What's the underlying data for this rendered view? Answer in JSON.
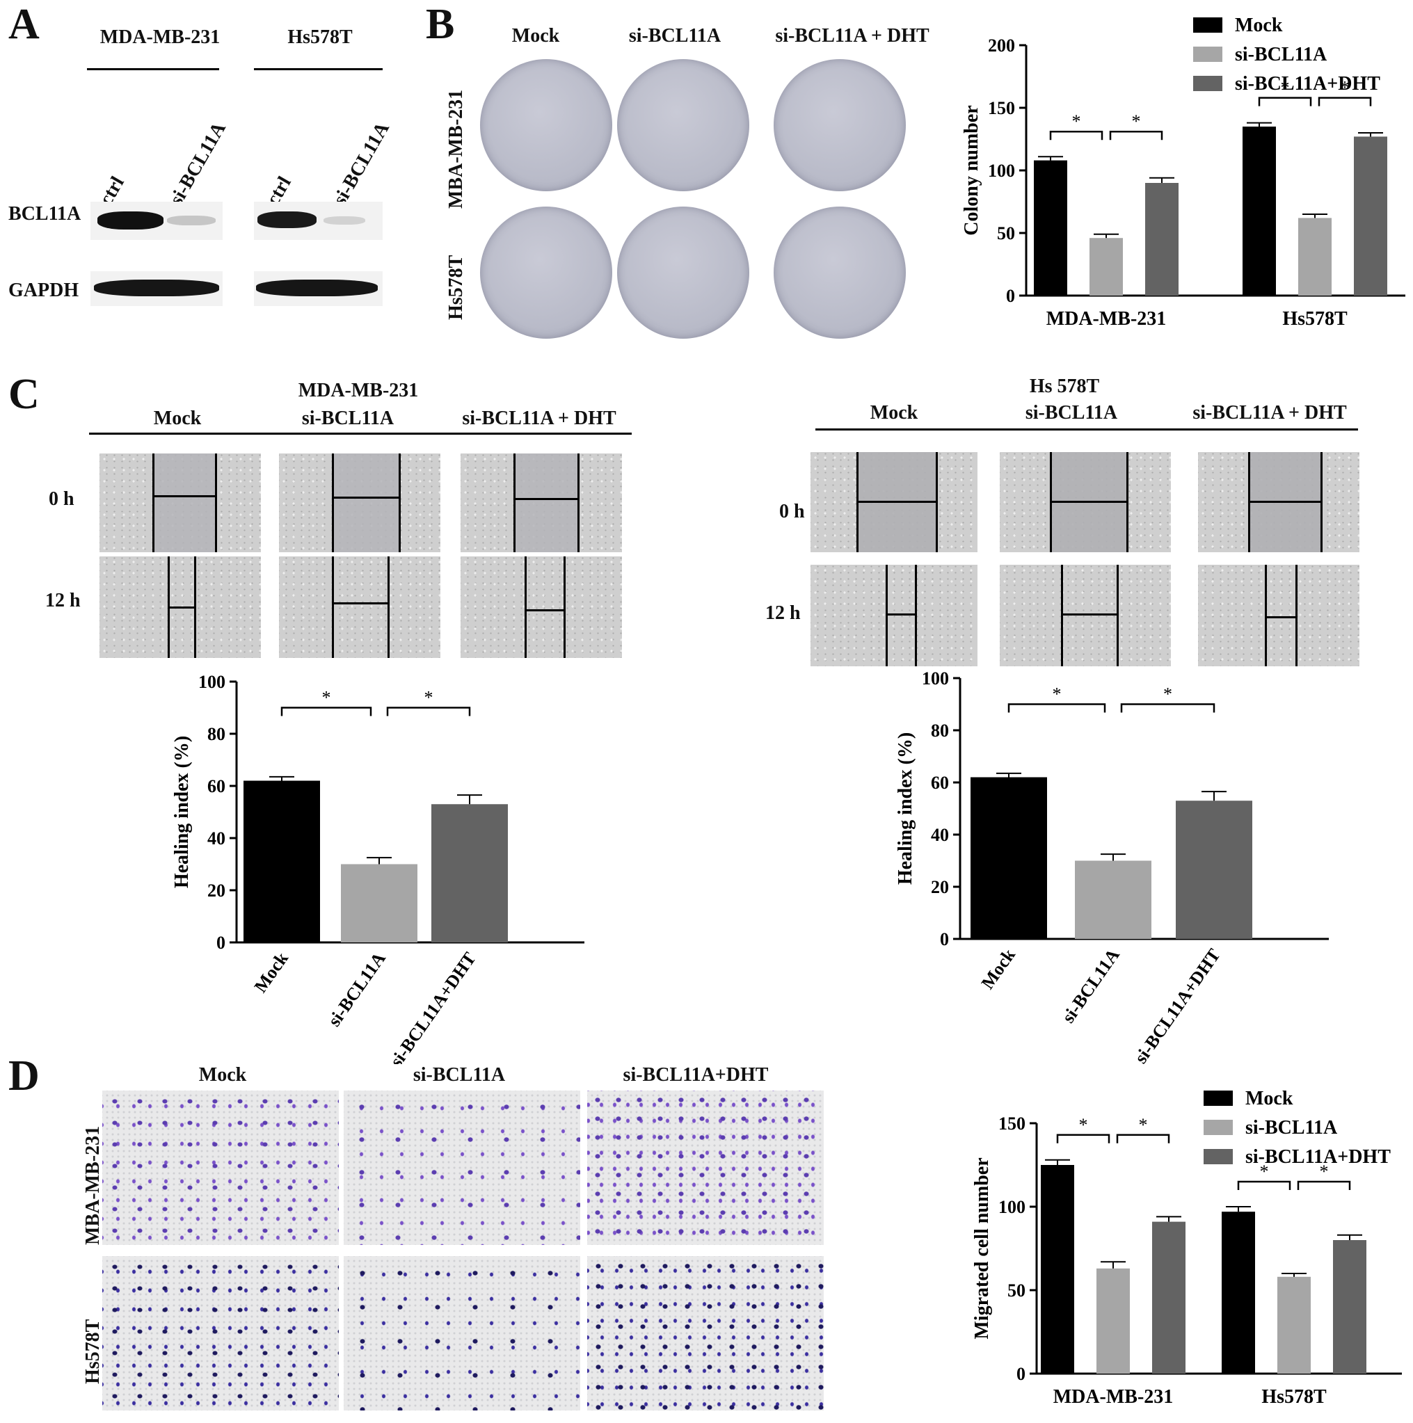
{
  "panels": {
    "A": {
      "letter": "A",
      "cell_lines": [
        "MDA-MB-231",
        "Hs578T"
      ],
      "lanes": [
        "ctrl",
        "si-BCL11A",
        "ctrl",
        "si-BCL11A"
      ],
      "proteins": [
        "BCL11A",
        "GAPDH"
      ]
    },
    "B": {
      "letter": "B",
      "conditions": [
        "Mock",
        "si-BCL11A",
        "si-BCL11A + DHT"
      ],
      "rows": [
        "MBA-MB-231",
        "Hs578T"
      ]
    },
    "C": {
      "letter": "C",
      "left_header": {
        "line": "MDA-MB-231",
        "conditions": [
          "Mock",
          "si-BCL11A",
          "si-BCL11A + DHT"
        ]
      },
      "right_header": {
        "line": "Hs 578T",
        "conditions": [
          "Mock",
          "si-BCL11A",
          "si-BCL11A + DHT"
        ]
      },
      "times": [
        "0 h",
        "12 h"
      ]
    },
    "D": {
      "letter": "D",
      "conditions": [
        "Mock",
        "si-BCL11A",
        "si-BCL11A+DHT"
      ],
      "rows": [
        "MBA-MB-231",
        "Hs578T"
      ]
    }
  },
  "colors": {
    "mock": "#000000",
    "si": "#a6a6a6",
    "dht": "#636363",
    "stain": "#5b3db0"
  },
  "chart_data": [
    {
      "id": "B",
      "type": "bar",
      "categories": [
        "MDA-MB-231",
        "Hs578T"
      ],
      "series": [
        {
          "name": "Mock",
          "values": [
            108,
            135
          ],
          "errors": [
            3,
            3
          ]
        },
        {
          "name": "si-BCL11A",
          "values": [
            46,
            62
          ],
          "errors": [
            3,
            3
          ]
        },
        {
          "name": "si-BCL11A+DHT",
          "values": [
            90,
            127
          ],
          "errors": [
            4,
            3
          ]
        }
      ],
      "ylabel": "Colony number",
      "ylim": [
        0,
        200
      ],
      "yticks": [
        0,
        50,
        100,
        150,
        200
      ],
      "significance": "*",
      "legend": "top-right"
    },
    {
      "id": "C-left",
      "type": "bar",
      "categories": [
        "Mock",
        "si-BCL11A",
        "si-BCL11A+DHT"
      ],
      "values": [
        62,
        30,
        53
      ],
      "errors": [
        1.5,
        2.5,
        3.5
      ],
      "ylabel": "Healing index (%)",
      "ylim": [
        0,
        100
      ],
      "yticks": [
        0,
        20,
        40,
        60,
        80,
        100
      ],
      "significance": "*"
    },
    {
      "id": "C-right",
      "type": "bar",
      "categories": [
        "Mock",
        "si-BCL11A",
        "si-BCL11A+DHT"
      ],
      "values": [
        62,
        30,
        53
      ],
      "errors": [
        1.5,
        2.5,
        3.5
      ],
      "ylabel": "Healing index (%)",
      "ylim": [
        0,
        100
      ],
      "yticks": [
        0,
        20,
        40,
        60,
        80,
        100
      ],
      "significance": "*"
    },
    {
      "id": "D",
      "type": "bar",
      "categories": [
        "MDA-MB-231",
        "Hs578T"
      ],
      "series": [
        {
          "name": "Mock",
          "values": [
            125,
            97
          ],
          "errors": [
            3,
            3
          ]
        },
        {
          "name": "si-BCL11A",
          "values": [
            63,
            58
          ],
          "errors": [
            4,
            2
          ]
        },
        {
          "name": "si-BCL11A+DHT",
          "values": [
            91,
            80
          ],
          "errors": [
            3,
            3
          ]
        }
      ],
      "ylabel": "Migrated cell number",
      "ylim": [
        0,
        150
      ],
      "yticks": [
        0,
        50,
        100,
        150
      ],
      "significance": "*",
      "legend": "top-right"
    }
  ]
}
